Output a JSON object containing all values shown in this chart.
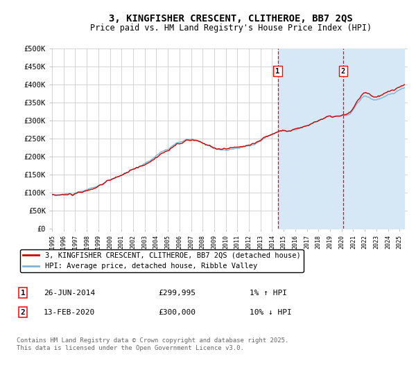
{
  "title": "3, KINGFISHER CRESCENT, CLITHEROE, BB7 2QS",
  "subtitle": "Price paid vs. HM Land Registry's House Price Index (HPI)",
  "ylabel_ticks": [
    "£0",
    "£50K",
    "£100K",
    "£150K",
    "£200K",
    "£250K",
    "£300K",
    "£350K",
    "£400K",
    "£450K",
    "£500K"
  ],
  "ytick_values": [
    0,
    50000,
    100000,
    150000,
    200000,
    250000,
    300000,
    350000,
    400000,
    450000,
    500000
  ],
  "ylim": [
    0,
    500000
  ],
  "xlim_start": 1995.0,
  "xlim_end": 2025.7,
  "red_line_color": "#cc0000",
  "blue_line_color": "#7fb3d3",
  "blue_fill_color": "#d6e8f5",
  "grid_color": "#cccccc",
  "background_color": "#ffffff",
  "marker1_x": 2014.48,
  "marker2_x": 2020.11,
  "marker1_label": "1",
  "marker2_label": "2",
  "legend_entries": [
    "3, KINGFISHER CRESCENT, CLITHEROE, BB7 2QS (detached house)",
    "HPI: Average price, detached house, Ribble Valley"
  ],
  "table_rows": [
    {
      "num": "1",
      "date": "26-JUN-2014",
      "price": "£299,995",
      "change": "1% ↑ HPI"
    },
    {
      "num": "2",
      "date": "13-FEB-2020",
      "price": "£300,000",
      "change": "10% ↓ HPI"
    }
  ],
  "footer": "Contains HM Land Registry data © Crown copyright and database right 2025.\nThis data is licensed under the Open Government Licence v3.0.",
  "title_fontsize": 10,
  "subtitle_fontsize": 8.5,
  "tick_fontsize": 7.5,
  "legend_fontsize": 7.5,
  "table_fontsize": 8,
  "footer_fontsize": 6.5
}
